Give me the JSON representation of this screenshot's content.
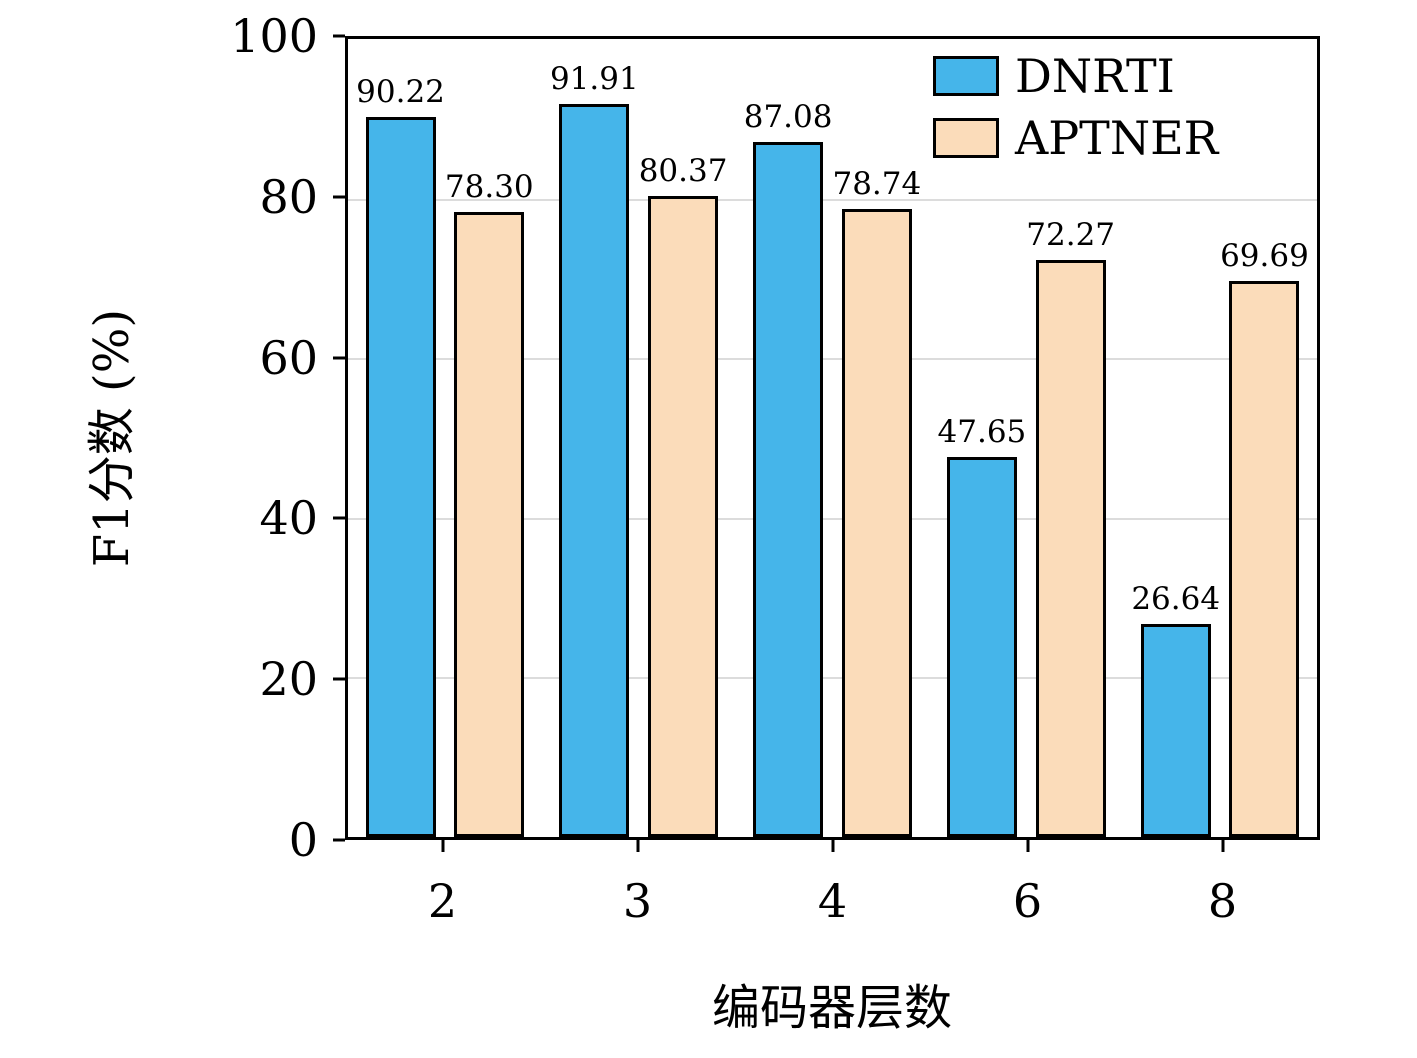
{
  "chart_data": {
    "type": "bar",
    "categories": [
      "2",
      "3",
      "4",
      "6",
      "8"
    ],
    "series": [
      {
        "name": "DNRTI",
        "color": "#45b5ea",
        "values": [
          90.22,
          91.91,
          87.08,
          47.65,
          26.64
        ],
        "labels": [
          "90.22",
          "91.91",
          "87.08",
          "47.65",
          "26.64"
        ]
      },
      {
        "name": "APTNER",
        "color": "#fbdcba",
        "values": [
          78.3,
          80.37,
          78.74,
          72.27,
          69.69
        ],
        "labels": [
          "78.30",
          "80.37",
          "78.74",
          "72.27",
          "69.69"
        ]
      }
    ],
    "title": "",
    "xlabel": "编码器层数",
    "ylabel": "F1分数 (%)",
    "ylim": [
      0,
      100
    ],
    "yticks": [
      0,
      20,
      40,
      60,
      80,
      100
    ],
    "ytick_labels": [
      "0",
      "20",
      "40",
      "60",
      "80",
      "100"
    ],
    "grid": true,
    "gridline_color": "#dcdcdc",
    "legend_position": "top-right",
    "legend_entries": [
      "DNRTI",
      "APTNER"
    ]
  }
}
